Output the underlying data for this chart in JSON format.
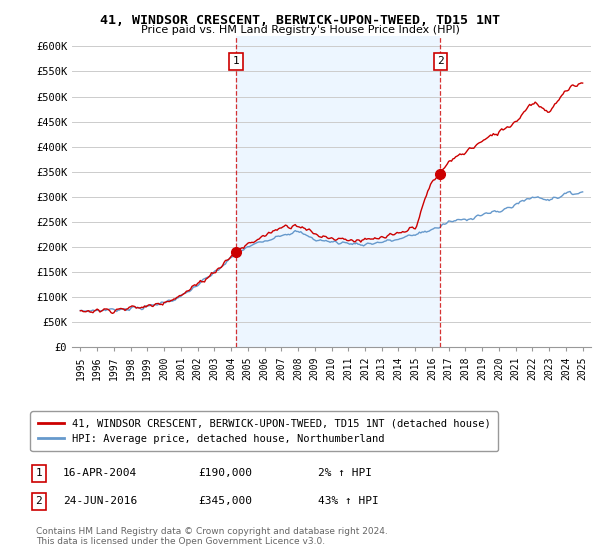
{
  "title": "41, WINDSOR CRESCENT, BERWICK-UPON-TWEED, TD15 1NT",
  "subtitle": "Price paid vs. HM Land Registry's House Price Index (HPI)",
  "ylabel_ticks": [
    "£0",
    "£50K",
    "£100K",
    "£150K",
    "£200K",
    "£250K",
    "£300K",
    "£350K",
    "£400K",
    "£450K",
    "£500K",
    "£550K",
    "£600K"
  ],
  "ytick_values": [
    0,
    50000,
    100000,
    150000,
    200000,
    250000,
    300000,
    350000,
    400000,
    450000,
    500000,
    550000,
    600000
  ],
  "ylim": [
    0,
    620000
  ],
  "xlim_start": 1994.5,
  "xlim_end": 2025.5,
  "xticks": [
    1995,
    1996,
    1997,
    1998,
    1999,
    2000,
    2001,
    2002,
    2003,
    2004,
    2005,
    2006,
    2007,
    2008,
    2009,
    2010,
    2011,
    2012,
    2013,
    2014,
    2015,
    2016,
    2017,
    2018,
    2019,
    2020,
    2021,
    2022,
    2023,
    2024,
    2025
  ],
  "property_color": "#cc0000",
  "hpi_color": "#6699cc",
  "dashed_line_color": "#cc0000",
  "shade_color": "#ddeeff",
  "marker1_x": 2004.3,
  "marker1_y": 190000,
  "marker2_x": 2016.5,
  "marker2_y": 345000,
  "sale1_label": "1",
  "sale2_label": "2",
  "legend_property": "41, WINDSOR CRESCENT, BERWICK-UPON-TWEED, TD15 1NT (detached house)",
  "legend_hpi": "HPI: Average price, detached house, Northumberland",
  "sale1_date": "16-APR-2004",
  "sale1_price": "£190,000",
  "sale1_hpi": "2% ↑ HPI",
  "sale2_date": "24-JUN-2016",
  "sale2_price": "£345,000",
  "sale2_hpi": "43% ↑ HPI",
  "footer": "Contains HM Land Registry data © Crown copyright and database right 2024.\nThis data is licensed under the Open Government Licence v3.0.",
  "bg_color": "#ffffff",
  "grid_color": "#cccccc"
}
